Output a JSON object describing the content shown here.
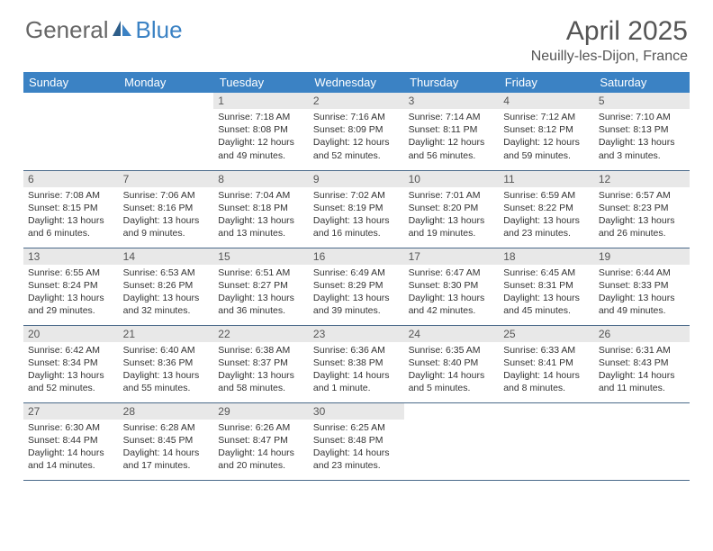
{
  "brand": {
    "part1": "General",
    "part2": "Blue"
  },
  "title": {
    "month": "April 2025",
    "location": "Neuilly-les-Dijon, France"
  },
  "colors": {
    "header_bg": "#3b82c4",
    "header_text": "#ffffff",
    "daynum_bg": "#e8e8e8",
    "border": "#4a6a8a",
    "text": "#333333",
    "brand_gray": "#666666",
    "brand_blue": "#3b82c4"
  },
  "weekdays": [
    "Sunday",
    "Monday",
    "Tuesday",
    "Wednesday",
    "Thursday",
    "Friday",
    "Saturday"
  ],
  "weeks": [
    [
      null,
      null,
      {
        "n": "1",
        "sr": "7:18 AM",
        "ss": "8:08 PM",
        "dl": "12 hours and 49 minutes."
      },
      {
        "n": "2",
        "sr": "7:16 AM",
        "ss": "8:09 PM",
        "dl": "12 hours and 52 minutes."
      },
      {
        "n": "3",
        "sr": "7:14 AM",
        "ss": "8:11 PM",
        "dl": "12 hours and 56 minutes."
      },
      {
        "n": "4",
        "sr": "7:12 AM",
        "ss": "8:12 PM",
        "dl": "12 hours and 59 minutes."
      },
      {
        "n": "5",
        "sr": "7:10 AM",
        "ss": "8:13 PM",
        "dl": "13 hours and 3 minutes."
      }
    ],
    [
      {
        "n": "6",
        "sr": "7:08 AM",
        "ss": "8:15 PM",
        "dl": "13 hours and 6 minutes."
      },
      {
        "n": "7",
        "sr": "7:06 AM",
        "ss": "8:16 PM",
        "dl": "13 hours and 9 minutes."
      },
      {
        "n": "8",
        "sr": "7:04 AM",
        "ss": "8:18 PM",
        "dl": "13 hours and 13 minutes."
      },
      {
        "n": "9",
        "sr": "7:02 AM",
        "ss": "8:19 PM",
        "dl": "13 hours and 16 minutes."
      },
      {
        "n": "10",
        "sr": "7:01 AM",
        "ss": "8:20 PM",
        "dl": "13 hours and 19 minutes."
      },
      {
        "n": "11",
        "sr": "6:59 AM",
        "ss": "8:22 PM",
        "dl": "13 hours and 23 minutes."
      },
      {
        "n": "12",
        "sr": "6:57 AM",
        "ss": "8:23 PM",
        "dl": "13 hours and 26 minutes."
      }
    ],
    [
      {
        "n": "13",
        "sr": "6:55 AM",
        "ss": "8:24 PM",
        "dl": "13 hours and 29 minutes."
      },
      {
        "n": "14",
        "sr": "6:53 AM",
        "ss": "8:26 PM",
        "dl": "13 hours and 32 minutes."
      },
      {
        "n": "15",
        "sr": "6:51 AM",
        "ss": "8:27 PM",
        "dl": "13 hours and 36 minutes."
      },
      {
        "n": "16",
        "sr": "6:49 AM",
        "ss": "8:29 PM",
        "dl": "13 hours and 39 minutes."
      },
      {
        "n": "17",
        "sr": "6:47 AM",
        "ss": "8:30 PM",
        "dl": "13 hours and 42 minutes."
      },
      {
        "n": "18",
        "sr": "6:45 AM",
        "ss": "8:31 PM",
        "dl": "13 hours and 45 minutes."
      },
      {
        "n": "19",
        "sr": "6:44 AM",
        "ss": "8:33 PM",
        "dl": "13 hours and 49 minutes."
      }
    ],
    [
      {
        "n": "20",
        "sr": "6:42 AM",
        "ss": "8:34 PM",
        "dl": "13 hours and 52 minutes."
      },
      {
        "n": "21",
        "sr": "6:40 AM",
        "ss": "8:36 PM",
        "dl": "13 hours and 55 minutes."
      },
      {
        "n": "22",
        "sr": "6:38 AM",
        "ss": "8:37 PM",
        "dl": "13 hours and 58 minutes."
      },
      {
        "n": "23",
        "sr": "6:36 AM",
        "ss": "8:38 PM",
        "dl": "14 hours and 1 minute."
      },
      {
        "n": "24",
        "sr": "6:35 AM",
        "ss": "8:40 PM",
        "dl": "14 hours and 5 minutes."
      },
      {
        "n": "25",
        "sr": "6:33 AM",
        "ss": "8:41 PM",
        "dl": "14 hours and 8 minutes."
      },
      {
        "n": "26",
        "sr": "6:31 AM",
        "ss": "8:43 PM",
        "dl": "14 hours and 11 minutes."
      }
    ],
    [
      {
        "n": "27",
        "sr": "6:30 AM",
        "ss": "8:44 PM",
        "dl": "14 hours and 14 minutes."
      },
      {
        "n": "28",
        "sr": "6:28 AM",
        "ss": "8:45 PM",
        "dl": "14 hours and 17 minutes."
      },
      {
        "n": "29",
        "sr": "6:26 AM",
        "ss": "8:47 PM",
        "dl": "14 hours and 20 minutes."
      },
      {
        "n": "30",
        "sr": "6:25 AM",
        "ss": "8:48 PM",
        "dl": "14 hours and 23 minutes."
      },
      null,
      null,
      null
    ]
  ],
  "labels": {
    "sunrise": "Sunrise: ",
    "sunset": "Sunset: ",
    "daylight": "Daylight: "
  }
}
